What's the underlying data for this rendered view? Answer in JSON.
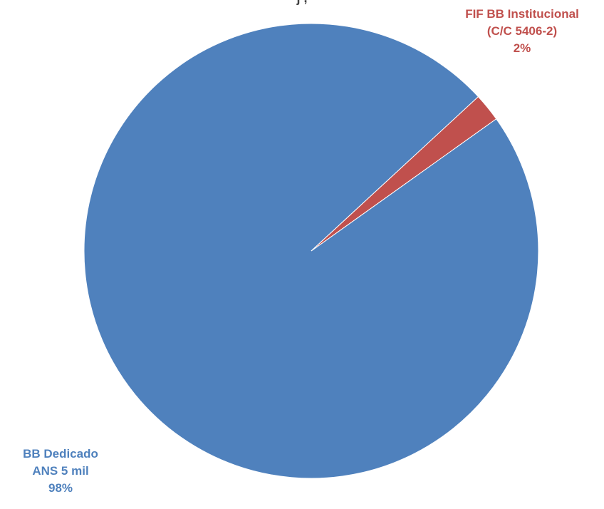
{
  "chart_data": {
    "type": "pie",
    "title": "",
    "title_partial": "j    ,  ",
    "slices": [
      {
        "label_lines": [
          "BB Dedicado",
          "ANS 5 mil"
        ],
        "percent_label": "98%",
        "value": 98,
        "color": "#4F81BD"
      },
      {
        "label_lines": [
          "FIF BB Institucional",
          "(C/C 5406-2)"
        ],
        "percent_label": "2%",
        "value": 2,
        "color": "#C0504D"
      }
    ],
    "legend": "none"
  }
}
